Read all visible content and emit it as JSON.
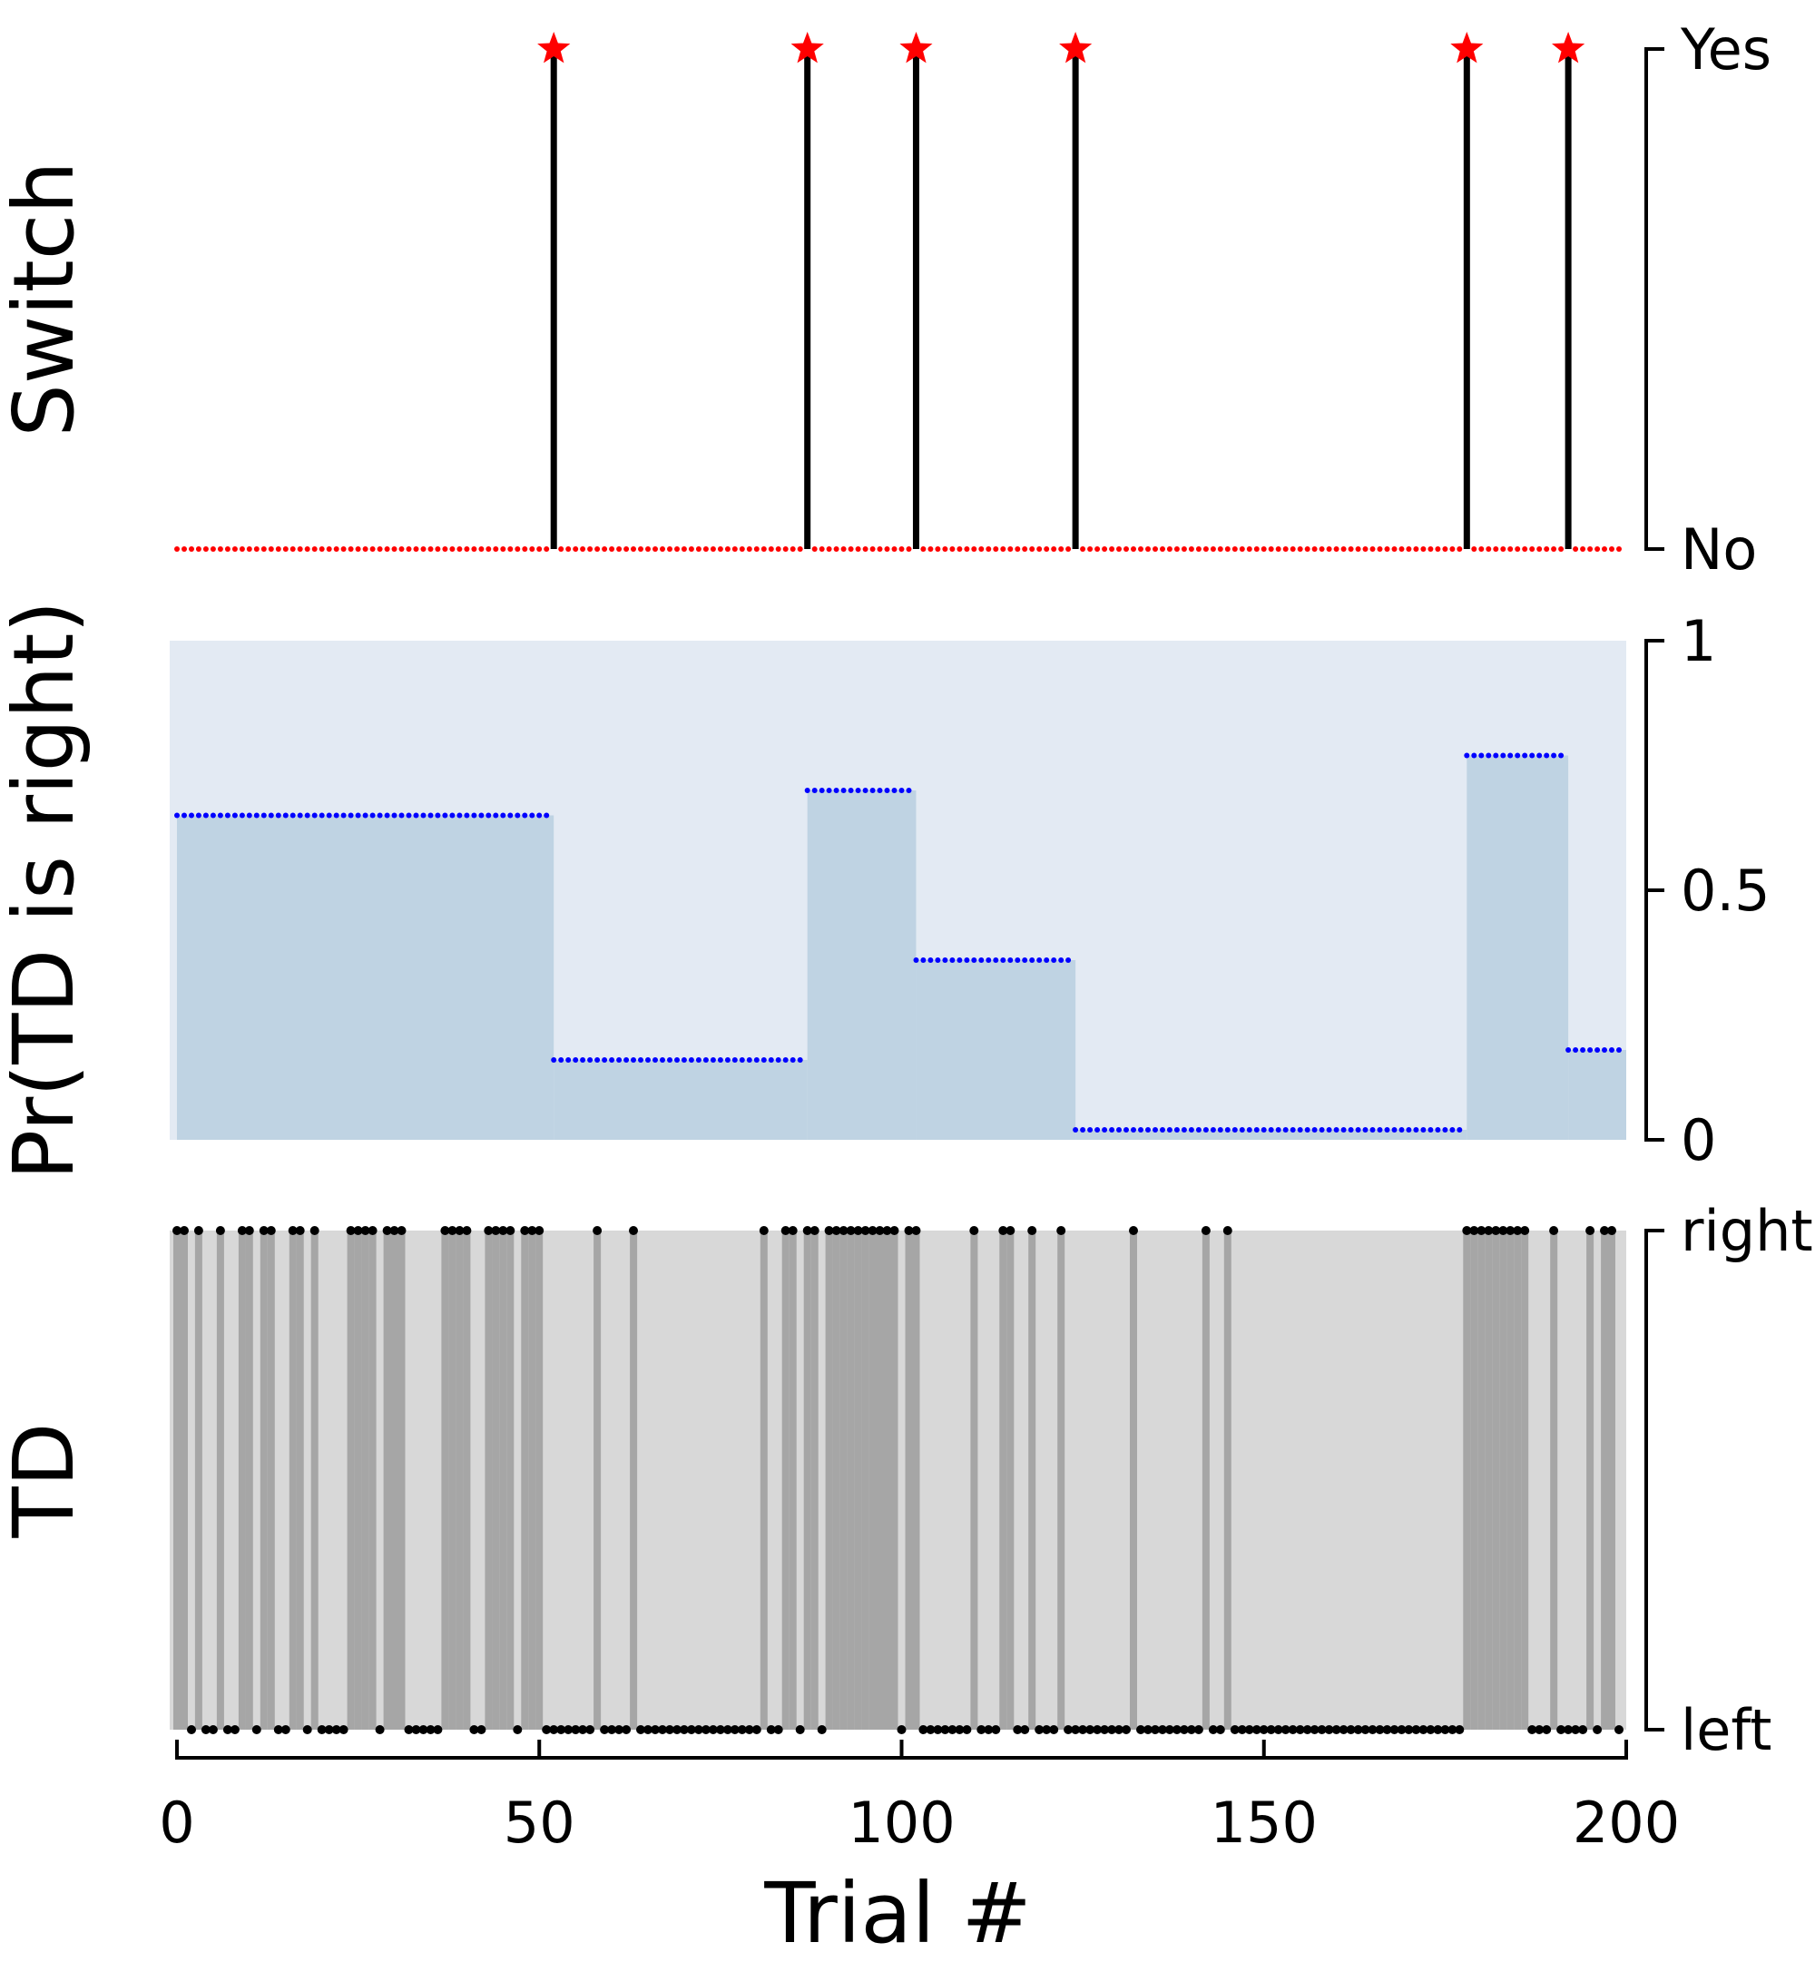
{
  "chart_data": [
    {
      "type": "line",
      "ylabel": "Switch",
      "xlim": [
        -1,
        200
      ],
      "ylim": [
        0,
        1
      ],
      "yticks": [
        0,
        1
      ],
      "ytick_labels": [
        "No",
        "Yes"
      ],
      "series": [
        {
          "values": [
            0
          ]
        },
        {
          "x": [
            52,
            87,
            102,
            124,
            178,
            192
          ]
        }
      ],
      "colors": {
        "no_switch": "#ff0000",
        "switch_marker": "#ff0000",
        "stem": "#000000"
      }
    },
    {
      "type": "area",
      "ylabel": "Pr(TD is right)",
      "xlim": [
        -1,
        200
      ],
      "ylim": [
        0,
        1
      ],
      "yticks": [
        0,
        0.5,
        1
      ],
      "ytick_labels": [
        "0",
        "0.5",
        "1"
      ],
      "series": [
        {
          "segments": [
            {
              "x": [
                0,
                52
              ],
              "y": 0.65
            },
            {
              "x": [
                52,
                87
              ],
              "y": 0.16
            },
            {
              "x": [
                87,
                102
              ],
              "y": 0.7
            },
            {
              "x": [
                102,
                124
              ],
              "y": 0.36
            },
            {
              "x": [
                124,
                178
              ],
              "y": 0.02
            },
            {
              "x": [
                178,
                192
              ],
              "y": 0.77
            },
            {
              "x": [
                192,
                200
              ],
              "y": 0.18
            }
          ]
        }
      ],
      "colors": {
        "background": "#e3eaf3",
        "fill": "#bfd3e3",
        "dots": "#0000ff"
      }
    },
    {
      "type": "scatter",
      "ylabel": "TD",
      "xlabel": "Trial #",
      "xlim": [
        -1,
        200
      ],
      "ylim": [
        0,
        1
      ],
      "yticks": [
        0,
        1
      ],
      "ytick_labels": [
        "left",
        "right"
      ],
      "xticks": [
        0,
        50,
        100,
        150,
        200
      ],
      "xtick_labels": [
        "0",
        "50",
        "100",
        "150",
        "200"
      ],
      "series": [
        {
          "right_trials": [
            0,
            1,
            3,
            6,
            9,
            10,
            12,
            13,
            16,
            17,
            19,
            24,
            25,
            26,
            27,
            29,
            30,
            31,
            37,
            38,
            39,
            40,
            43,
            44,
            45,
            46,
            48,
            49,
            50,
            58,
            63,
            81,
            84,
            85,
            87,
            88,
            90,
            91,
            92,
            93,
            94,
            95,
            96,
            97,
            98,
            99,
            101,
            102,
            110,
            114,
            115,
            118,
            122,
            132,
            142,
            145,
            178,
            179,
            180,
            181,
            182,
            183,
            184,
            185,
            186,
            190,
            195,
            197,
            198
          ]
        }
      ],
      "colors": {
        "right_band": "#a6a6a6",
        "left_band": "#d8d8d8",
        "dots": "#000000"
      }
    }
  ]
}
